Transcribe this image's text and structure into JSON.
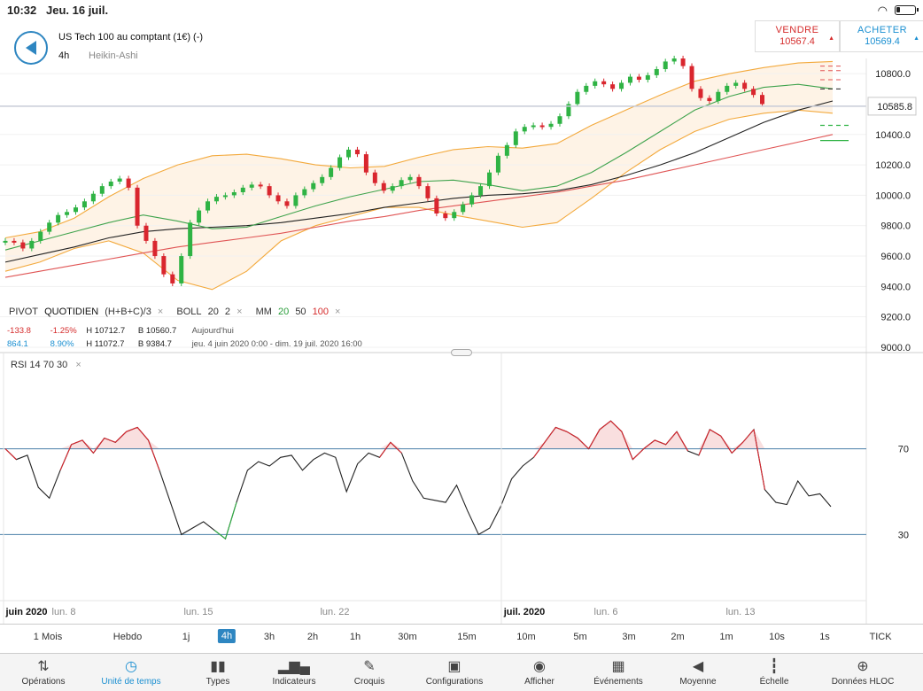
{
  "status_bar": {
    "time": "10:32",
    "date": "Jeu. 16 juil."
  },
  "header": {
    "instrument": "US Tech 100 au comptant (1€) (-)",
    "timeframe": "4h",
    "chart_type": "Heikin-Ashi",
    "sell": {
      "label": "VENDRE",
      "price": "10567.4",
      "color": "#d52b2b"
    },
    "buy": {
      "label": "ACHETER",
      "price": "10569.4",
      "color": "#1a8fd1"
    }
  },
  "price_axis": {
    "ticks": [
      "10800.0",
      "10600.0",
      "10400.0",
      "10200.0",
      "10000.0",
      "9800.0",
      "9600.0",
      "9400.0",
      "9200.0",
      "9000.0"
    ],
    "current_price": "10585.8"
  },
  "indicators": {
    "pivot": {
      "label": "PIVOT",
      "period": "QUOTIDIEN",
      "formula": "(H+B+C)/3"
    },
    "boll": {
      "label": "BOLL",
      "period": "20",
      "dev": "2"
    },
    "mm": {
      "label": "MM",
      "p1": "20",
      "p2": "50",
      "p3": "100"
    },
    "close_icon": "×"
  },
  "stats": {
    "row1": {
      "change": "-133.8",
      "change_pct": "-1.25%",
      "high": "H 10712.7",
      "low": "B 10560.7",
      "period": "Aujourd'hui"
    },
    "row2": {
      "change": "864.1",
      "change_pct": "8.90%",
      "high": "H 11072.7",
      "low": "B 9384.7",
      "period": "jeu. 4 juin 2020 0:00 - dim. 19 juil. 2020 16:00"
    }
  },
  "rsi": {
    "label": "RSI",
    "period": "14",
    "upper": "70",
    "lower": "30",
    "upper_label": "70",
    "lower_label": "30"
  },
  "x_axis": [
    {
      "label": "juin 2020",
      "bold": true
    },
    {
      "label": "lun. 8",
      "bold": false
    },
    {
      "label": "lun. 15",
      "bold": false
    },
    {
      "label": "lun. 22",
      "bold": false
    },
    {
      "label": "juil. 2020",
      "bold": true
    },
    {
      "label": "lun. 6",
      "bold": false
    },
    {
      "label": "lun. 13",
      "bold": false
    }
  ],
  "timeframes": [
    "1 Mois",
    "Hebdo",
    "1j",
    "4h",
    "3h",
    "2h",
    "1h",
    "30m",
    "15m",
    "10m",
    "5m",
    "3m",
    "2m",
    "1m",
    "10s",
    "1s",
    "TICK"
  ],
  "active_timeframe": "4h",
  "toolbar": [
    {
      "label": "Opérations",
      "icon": "sort-arrows-icon"
    },
    {
      "label": "Unité de temps",
      "icon": "clock-icon",
      "active": true
    },
    {
      "label": "Types",
      "icon": "candlestick-icon"
    },
    {
      "label": "Indicateurs",
      "icon": "bar-chart-icon"
    },
    {
      "label": "Croquis",
      "icon": "pencil-icon"
    },
    {
      "label": "Configurations",
      "icon": "layout-icon"
    },
    {
      "label": "Afficher",
      "icon": "eye-icon"
    },
    {
      "label": "Événements",
      "icon": "calendar-icon"
    },
    {
      "label": "Moyenne",
      "icon": "speaker-icon"
    },
    {
      "label": "Échelle",
      "icon": "ruler-icon"
    },
    {
      "label": "Données HLOC",
      "icon": "crosshair-icon"
    }
  ],
  "chart_data": [
    {
      "type": "candlestick",
      "title": "US Tech 100 au comptant (1€) (-)",
      "ylim": [
        9000,
        10900
      ],
      "series": [
        {
          "name": "Heikin-Ashi",
          "values": [
            9700,
            9690,
            9650,
            9700,
            9760,
            9820,
            9870,
            9890,
            9920,
            9960,
            10010,
            10060,
            10090,
            10110,
            10050,
            9800,
            9700,
            9600,
            9480,
            9420,
            9600,
            9820,
            9900,
            9960,
            9990,
            10000,
            10020,
            10050,
            10070,
            10060,
            10000,
            9960,
            9930,
            10000,
            10040,
            10080,
            10120,
            10180,
            10250,
            10300,
            10270,
            10150,
            10080,
            10030,
            10060,
            10100,
            10120,
            10060,
            9980,
            9880,
            9850,
            9890,
            9940,
            10000,
            10060,
            10150,
            10260,
            10330,
            10420,
            10450,
            10460,
            10450,
            10470,
            10520,
            10600,
            10680,
            10720,
            10750,
            10730,
            10700,
            10740,
            10780,
            10760,
            10790,
            10830,
            10880,
            10900,
            10850,
            10700,
            10640,
            10620,
            10680,
            10720,
            10740,
            10700,
            10660,
            10600
          ]
        },
        {
          "name": "BOLL 20 2 upper",
          "values": [
            9720,
            9760,
            9850,
            9990,
            10110,
            10200,
            10260,
            10270,
            10240,
            10200,
            10180,
            10190,
            10250,
            10300,
            10320,
            10310,
            10340,
            10460,
            10560,
            10660,
            10750,
            10800,
            10840,
            10870,
            10880
          ]
        },
        {
          "name": "BOLL 20 2 lower",
          "values": [
            9500,
            9560,
            9650,
            9700,
            9620,
            9440,
            9380,
            9500,
            9700,
            9800,
            9860,
            9920,
            9920,
            9870,
            9830,
            9790,
            9820,
            9980,
            10150,
            10300,
            10420,
            10500,
            10540,
            10560,
            10540
          ]
        },
        {
          "name": "MM 20",
          "values": [
            9640,
            9700,
            9760,
            9820,
            9870,
            9830,
            9780,
            9790,
            9860,
            9930,
            9990,
            10040,
            10090,
            10100,
            10070,
            10030,
            10060,
            10150,
            10280,
            10420,
            10560,
            10650,
            10710,
            10730,
            10700
          ]
        },
        {
          "name": "MM 50",
          "values": [
            9560,
            9610,
            9660,
            9720,
            9760,
            9780,
            9790,
            9800,
            9820,
            9850,
            9880,
            9920,
            9950,
            9980,
            10000,
            10010,
            10030,
            10070,
            10130,
            10200,
            10280,
            10380,
            10480,
            10560,
            10620
          ]
        },
        {
          "name": "MM 100",
          "values": [
            9460,
            9500,
            9540,
            9580,
            9620,
            9660,
            9690,
            9720,
            9750,
            9790,
            9830,
            9860,
            9900,
            9930,
            9960,
            9990,
            10020,
            10060,
            10100,
            10150,
            10200,
            10250,
            10300,
            10350,
            10400
          ]
        }
      ]
    },
    {
      "type": "line",
      "title": "RSI 14 70 30",
      "ylim": [
        0,
        100
      ],
      "overbought": 70,
      "oversold": 30,
      "series": [
        {
          "name": "RSI",
          "values": [
            70,
            65,
            67,
            52,
            47,
            60,
            72,
            74,
            68,
            75,
            73,
            78,
            80,
            74,
            60,
            45,
            30,
            33,
            36,
            32,
            28,
            45,
            60,
            64,
            62,
            66,
            67,
            60,
            65,
            68,
            66,
            50,
            63,
            68,
            66,
            73,
            68,
            55,
            47,
            46,
            45,
            53,
            41,
            30,
            33,
            43,
            56,
            62,
            66,
            73,
            80,
            78,
            75,
            70,
            79,
            83,
            78,
            65,
            70,
            74,
            72,
            78,
            69,
            67,
            79,
            76,
            68,
            73,
            79,
            51,
            45,
            44,
            55,
            48,
            49,
            43
          ]
        }
      ]
    }
  ]
}
